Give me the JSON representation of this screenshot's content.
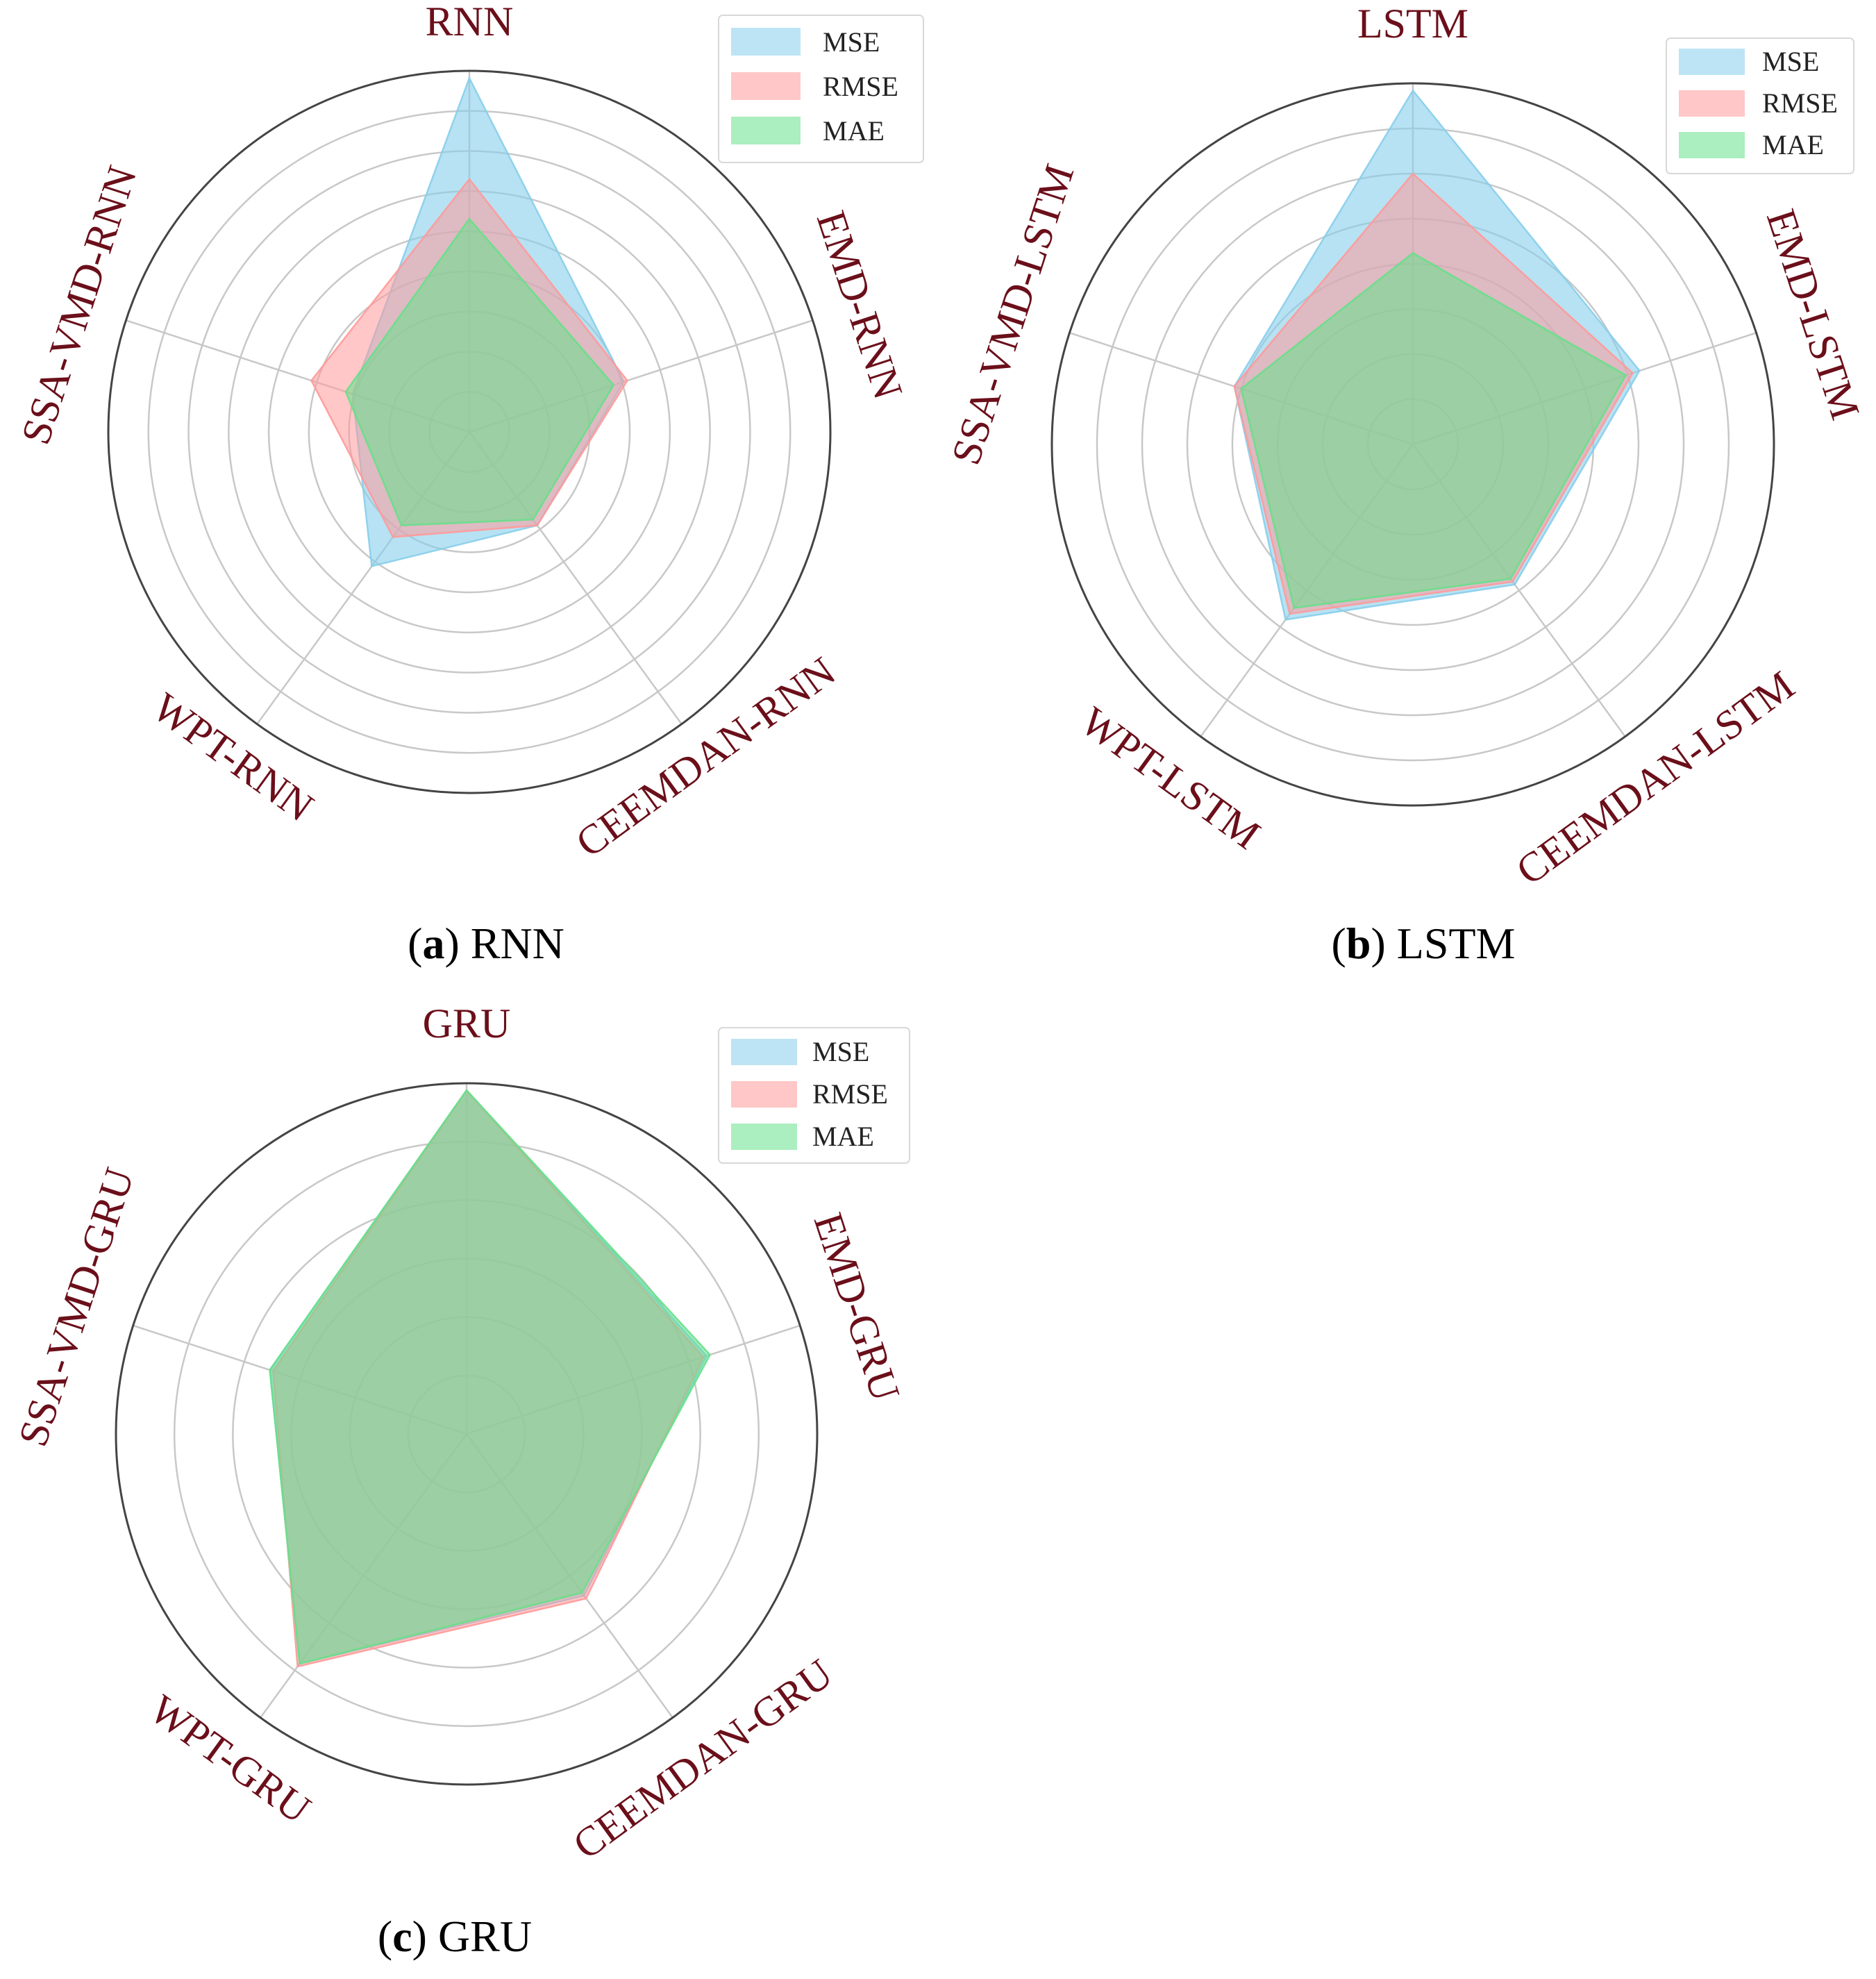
{
  "colors": {
    "mse": "#87CEEB",
    "rmse": "#FF9999",
    "mae": "#66E08A",
    "label": "#6B0F1A",
    "grid": "#c8c8c8",
    "frame": "#444444"
  },
  "legend": [
    "MSE",
    "RMSE",
    "MAE"
  ],
  "captions": [
    {
      "letter": "a",
      "text": "RNN"
    },
    {
      "letter": "b",
      "text": "LSTM"
    },
    {
      "letter": "c",
      "text": "GRU"
    }
  ],
  "chart_data": [
    {
      "type": "radar",
      "panel": "a",
      "title": "RNN",
      "categories": [
        "RNN",
        "EMD-RNN",
        "CEEMDAN-RNN",
        "WPT-RNN",
        "SSA-VMD-RNN"
      ],
      "rmax": 1.0,
      "ring_count": 8,
      "series": [
        {
          "name": "MSE",
          "values": [
            0.98,
            0.45,
            0.32,
            0.46,
            0.34
          ]
        },
        {
          "name": "RMSE",
          "values": [
            0.7,
            0.46,
            0.32,
            0.36,
            0.46
          ]
        },
        {
          "name": "MAE",
          "values": [
            0.59,
            0.42,
            0.3,
            0.32,
            0.36
          ]
        }
      ],
      "legend_position": "top-right"
    },
    {
      "type": "radar",
      "panel": "b",
      "title": "LSTM",
      "categories": [
        "LSTM",
        "EMD-LSTM",
        "CEEMDAN-LSTM",
        "WPT-LSTM",
        "SSA-VMD-LSTM"
      ],
      "rmax": 1.0,
      "ring_count": 7,
      "series": [
        {
          "name": "MSE",
          "values": [
            0.98,
            0.66,
            0.48,
            0.6,
            0.52
          ]
        },
        {
          "name": "RMSE",
          "values": [
            0.75,
            0.64,
            0.47,
            0.58,
            0.52
          ]
        },
        {
          "name": "MAE",
          "values": [
            0.53,
            0.62,
            0.46,
            0.56,
            0.5
          ]
        }
      ],
      "legend_position": "top-right"
    },
    {
      "type": "radar",
      "panel": "c",
      "title": "GRU",
      "categories": [
        "GRU",
        "EMD-GRU",
        "CEEMDAN-GRU",
        "WPT-GRU",
        "SSA-VMD-GRU"
      ],
      "rmax": 1.0,
      "ring_count": 5,
      "series": [
        {
          "name": "MSE",
          "values": [
            0.98,
            0.72,
            0.57,
            0.81,
            0.59
          ]
        },
        {
          "name": "RMSE",
          "values": [
            0.98,
            0.71,
            0.58,
            0.82,
            0.58
          ]
        },
        {
          "name": "MAE",
          "values": [
            0.98,
            0.73,
            0.56,
            0.81,
            0.59
          ]
        }
      ],
      "legend_position": "top-right"
    }
  ]
}
